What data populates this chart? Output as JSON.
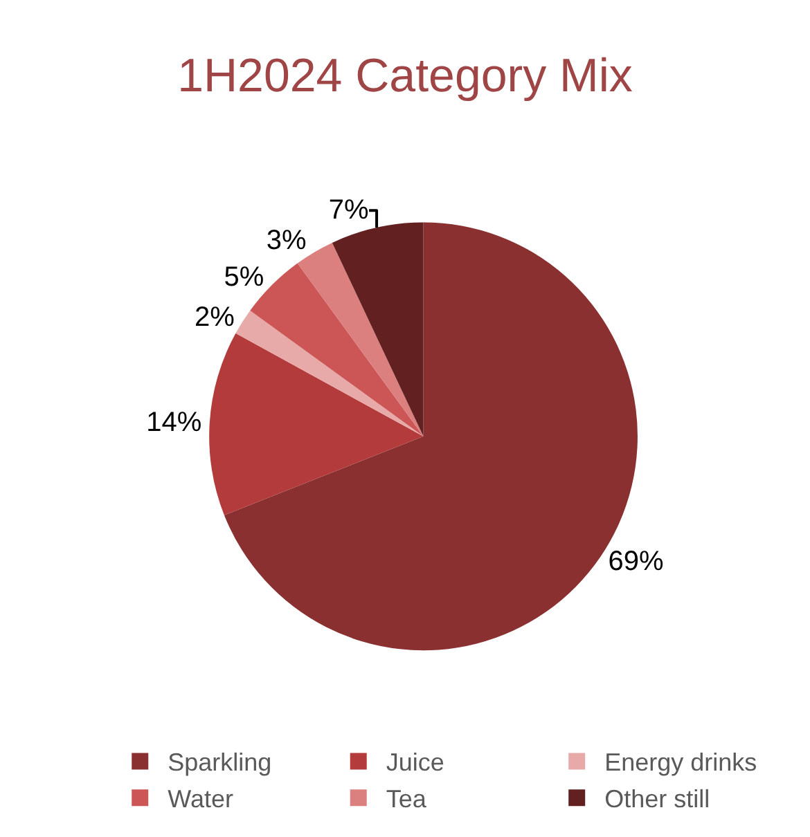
{
  "chart_data": {
    "type": "pie",
    "title": "1H2024 Category Mix",
    "categories": [
      "Sparkling",
      "Juice",
      "Energy drinks",
      "Water",
      "Tea",
      "Other still"
    ],
    "values": [
      69,
      14,
      2,
      5,
      3,
      7
    ],
    "value_labels": [
      "69%",
      "14%",
      "2%",
      "5%",
      "3%",
      "7%"
    ],
    "colors": [
      "#8b3030",
      "#b33b3b",
      "#e8a9a9",
      "#cc5555",
      "#db7f7f",
      "#632020"
    ],
    "legend": "bottom"
  }
}
